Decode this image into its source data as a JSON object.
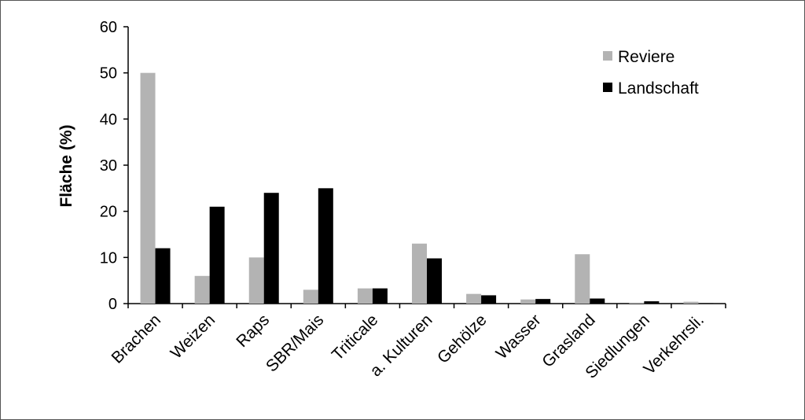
{
  "chart_data": {
    "type": "bar",
    "title": "",
    "xlabel": "",
    "ylabel": "Fläche (%)",
    "ylim": [
      0,
      60
    ],
    "yticks": [
      0,
      10,
      20,
      30,
      40,
      50,
      60
    ],
    "grid": false,
    "legend_position": "top-right",
    "categories": [
      "Brachen",
      "Weizen",
      "Raps",
      "SBR/Mais",
      "Triticale",
      "a. Kulturen",
      "Gehölze",
      "Wasser",
      "Grasland",
      "Siedlungen",
      "Verkehrsli."
    ],
    "series": [
      {
        "name": "Reviere",
        "color": "#b3b3b3",
        "values": [
          50,
          6,
          10,
          3,
          3.3,
          13,
          2.1,
          0.9,
          10.7,
          0.2,
          0.4
        ]
      },
      {
        "name": "Landschaft",
        "color": "#000000",
        "values": [
          12,
          21,
          24,
          25,
          3.3,
          9.8,
          1.8,
          1.0,
          1.1,
          0.5,
          0.1
        ]
      }
    ]
  }
}
